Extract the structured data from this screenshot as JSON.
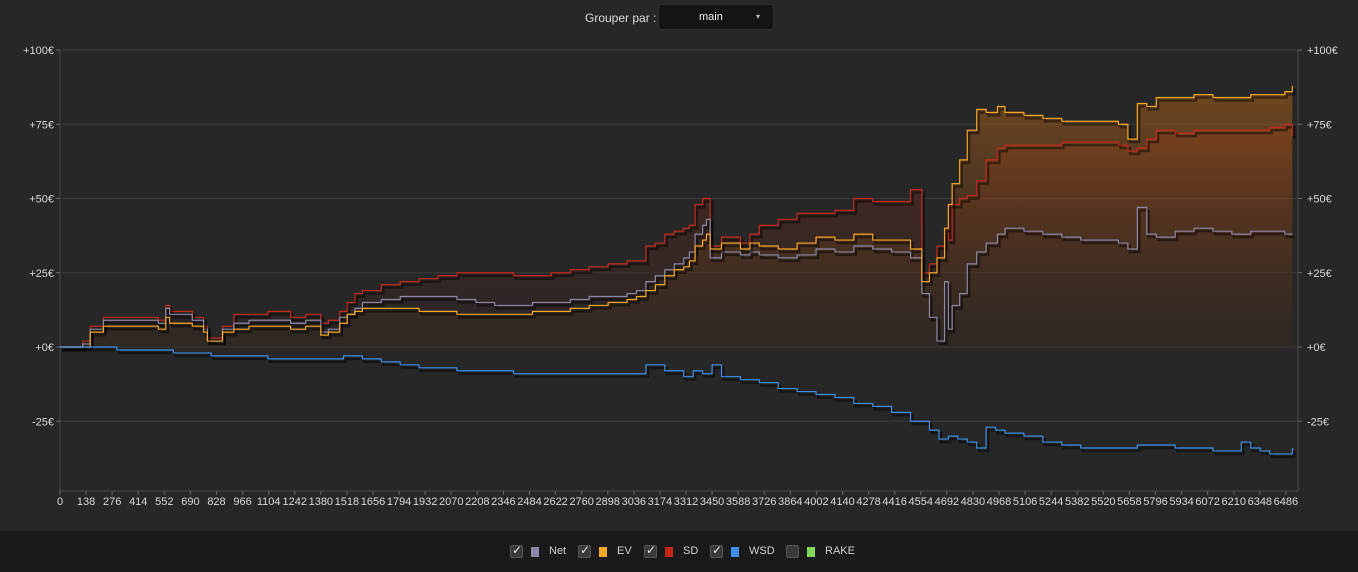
{
  "toolbar": {
    "group_label": "Grouper par :",
    "group_value": "main",
    "caret": "▾"
  },
  "colors": {
    "background": "#272727",
    "grid": "#3a3a3a",
    "net": "#8b88a8",
    "ev": "#f5a623",
    "sd": "#c4281c",
    "wsd": "#3d8ee8",
    "rake": "#7ed957"
  },
  "legend": [
    {
      "label": "Net",
      "series": "net",
      "checked": true,
      "check_glyph": "✓",
      "icon": "checkbox"
    },
    {
      "label": "EV",
      "series": "ev",
      "checked": true,
      "check_glyph": "✓",
      "icon": "checkbox"
    },
    {
      "label": "SD",
      "series": "sd",
      "checked": true,
      "check_glyph": "✓",
      "icon": "checkbox"
    },
    {
      "label": "WSD",
      "series": "wsd",
      "checked": true,
      "check_glyph": "✓",
      "icon": "checkbox"
    },
    {
      "label": "RAKE",
      "series": "rake",
      "checked": false,
      "check_glyph": "",
      "icon": "checkbox"
    }
  ],
  "chart_data": {
    "type": "line",
    "title": "",
    "xlabel": "",
    "ylabel": "",
    "xlim": [
      0,
      6550
    ],
    "ylim": [
      -48,
      102
    ],
    "grid": true,
    "fill": "area-under-ev-and-sd",
    "y_ticks": [
      {
        "value": 100,
        "label": "+100€"
      },
      {
        "value": 75,
        "label": "+75€"
      },
      {
        "value": 50,
        "label": "+50€"
      },
      {
        "value": 25,
        "label": "+25€"
      },
      {
        "value": 0,
        "label": "+0€"
      },
      {
        "value": -25,
        "label": "-25€"
      }
    ],
    "x_ticks": [
      0,
      138,
      276,
      414,
      552,
      690,
      828,
      966,
      1104,
      1242,
      1380,
      1518,
      1656,
      1794,
      1932,
      2070,
      2208,
      2346,
      2484,
      2622,
      2760,
      2898,
      3036,
      3174,
      3312,
      3450,
      3588,
      3726,
      3864,
      4002,
      4140,
      4278,
      4416,
      4554,
      4692,
      4830,
      4968,
      5106,
      5244,
      5382,
      5520,
      5658,
      5796,
      5934,
      6072,
      6210,
      6348,
      6486
    ],
    "series": [
      {
        "name": "SD",
        "key": "sd",
        "x": [
          0,
          120,
          160,
          230,
          270,
          520,
          560,
          580,
          700,
          760,
          780,
          860,
          920,
          1000,
          1100,
          1220,
          1300,
          1380,
          1420,
          1480,
          1520,
          1560,
          1600,
          1700,
          1800,
          1900,
          2000,
          2100,
          2200,
          2300,
          2400,
          2500,
          2600,
          2700,
          2800,
          2900,
          3000,
          3050,
          3100,
          3150,
          3200,
          3250,
          3300,
          3330,
          3360,
          3400,
          3420,
          3440,
          3500,
          3600,
          3650,
          3700,
          3800,
          3900,
          4000,
          4100,
          4200,
          4300,
          4400,
          4500,
          4560,
          4600,
          4640,
          4680,
          4700,
          4720,
          4760,
          4800,
          4850,
          4900,
          4960,
          5000,
          5100,
          5200,
          5300,
          5400,
          5500,
          5600,
          5650,
          5700,
          5750,
          5800,
          5900,
          6000,
          6100,
          6200,
          6300,
          6400,
          6480,
          6520
        ],
        "y": [
          0,
          2,
          7,
          10,
          10,
          9,
          14,
          12,
          10,
          7,
          3,
          7,
          11,
          11,
          12,
          10,
          11,
          8,
          9,
          12,
          15,
          18,
          19,
          21,
          22,
          23,
          24,
          25,
          25,
          25,
          24,
          24,
          25,
          26,
          27,
          28,
          29,
          29,
          34,
          35,
          38,
          39,
          40,
          41,
          48,
          50,
          50,
          34,
          37,
          35,
          38,
          41,
          43,
          45,
          45,
          46,
          50,
          49,
          49,
          53,
          25,
          28,
          34,
          40,
          36,
          48,
          50,
          51,
          56,
          63,
          67,
          68,
          68,
          68,
          69,
          69,
          69,
          68,
          66,
          67,
          70,
          73,
          72,
          73,
          73,
          73,
          73,
          74,
          75,
          71
        ]
      },
      {
        "name": "Net",
        "key": "net",
        "x": [
          0,
          120,
          160,
          230,
          270,
          520,
          560,
          580,
          700,
          760,
          780,
          860,
          920,
          1000,
          1100,
          1220,
          1300,
          1380,
          1420,
          1480,
          1520,
          1560,
          1600,
          1700,
          1800,
          1900,
          2000,
          2100,
          2200,
          2300,
          2400,
          2500,
          2600,
          2700,
          2800,
          2900,
          3000,
          3050,
          3100,
          3150,
          3200,
          3250,
          3300,
          3330,
          3360,
          3400,
          3420,
          3440,
          3500,
          3600,
          3650,
          3700,
          3800,
          3900,
          4000,
          4100,
          4200,
          4300,
          4400,
          4500,
          4560,
          4600,
          4640,
          4680,
          4700,
          4720,
          4760,
          4800,
          4850,
          4900,
          4960,
          5000,
          5100,
          5200,
          5300,
          5400,
          5500,
          5600,
          5650,
          5700,
          5750,
          5800,
          5900,
          6000,
          6100,
          6200,
          6300,
          6400,
          6480,
          6520
        ],
        "y": [
          0,
          1,
          6,
          9,
          9,
          8,
          13,
          11,
          9,
          6,
          2,
          6,
          8,
          9,
          9,
          8,
          9,
          5,
          6,
          10,
          11,
          13,
          15,
          16,
          17,
          17,
          17,
          16,
          15,
          14,
          14,
          15,
          15,
          16,
          17,
          17,
          18,
          19,
          22,
          24,
          26,
          28,
          30,
          32,
          38,
          41,
          43,
          30,
          32,
          31,
          32,
          31,
          30,
          31,
          33,
          32,
          34,
          33,
          32,
          30,
          18,
          10,
          2,
          22,
          6,
          14,
          18,
          28,
          32,
          35,
          38,
          40,
          39,
          38,
          37,
          36,
          36,
          35,
          33,
          47,
          38,
          37,
          39,
          40,
          39,
          38,
          39,
          39,
          38,
          38
        ]
      },
      {
        "name": "EV",
        "key": "ev",
        "x": [
          0,
          120,
          160,
          230,
          270,
          520,
          560,
          580,
          700,
          760,
          780,
          860,
          920,
          1000,
          1100,
          1220,
          1300,
          1380,
          1420,
          1480,
          1520,
          1560,
          1600,
          1700,
          1800,
          1900,
          2000,
          2100,
          2200,
          2300,
          2400,
          2500,
          2600,
          2700,
          2800,
          2900,
          3000,
          3050,
          3100,
          3150,
          3200,
          3250,
          3300,
          3330,
          3360,
          3400,
          3420,
          3440,
          3500,
          3600,
          3650,
          3700,
          3800,
          3900,
          4000,
          4100,
          4200,
          4300,
          4400,
          4500,
          4560,
          4600,
          4640,
          4680,
          4700,
          4720,
          4760,
          4800,
          4850,
          4900,
          4960,
          5000,
          5100,
          5200,
          5300,
          5400,
          5500,
          5600,
          5650,
          5700,
          5750,
          5800,
          5900,
          6000,
          6100,
          6200,
          6300,
          6400,
          6480,
          6520
        ],
        "y": [
          0,
          0,
          5,
          7,
          7,
          6,
          10,
          8,
          7,
          5,
          2,
          5,
          6,
          7,
          7,
          6,
          7,
          4,
          5,
          8,
          11,
          12,
          13,
          13,
          13,
          12,
          12,
          11,
          11,
          11,
          11,
          12,
          12,
          13,
          14,
          15,
          16,
          17,
          19,
          21,
          24,
          26,
          27,
          29,
          34,
          36,
          38,
          33,
          35,
          33,
          35,
          34,
          33,
          35,
          37,
          36,
          38,
          36,
          36,
          33,
          22,
          25,
          30,
          40,
          48,
          55,
          63,
          73,
          80,
          79,
          81,
          79,
          78,
          77,
          76,
          76,
          76,
          75,
          70,
          82,
          81,
          84,
          84,
          85,
          84,
          84,
          85,
          85,
          86,
          88
        ]
      },
      {
        "name": "WSD",
        "key": "wsd",
        "x": [
          0,
          100,
          200,
          300,
          400,
          500,
          600,
          700,
          800,
          900,
          1000,
          1100,
          1200,
          1300,
          1400,
          1500,
          1600,
          1700,
          1800,
          1900,
          2000,
          2100,
          2200,
          2300,
          2400,
          2500,
          2600,
          2700,
          2800,
          2900,
          3000,
          3100,
          3200,
          3300,
          3350,
          3400,
          3450,
          3500,
          3550,
          3600,
          3700,
          3800,
          3900,
          4000,
          4100,
          4200,
          4300,
          4400,
          4500,
          4600,
          4650,
          4700,
          4750,
          4800,
          4850,
          4900,
          4950,
          5000,
          5100,
          5200,
          5300,
          5400,
          5500,
          5600,
          5700,
          5800,
          5900,
          6000,
          6100,
          6200,
          6250,
          6300,
          6350,
          6400,
          6450,
          6500,
          6520
        ],
        "y": [
          0,
          0,
          0,
          -1,
          -1,
          -1,
          -2,
          -2,
          -3,
          -3,
          -3,
          -4,
          -4,
          -4,
          -4,
          -3,
          -4,
          -5,
          -6,
          -7,
          -7,
          -8,
          -8,
          -8,
          -9,
          -9,
          -9,
          -9,
          -9,
          -9,
          -9,
          -6,
          -8,
          -10,
          -8,
          -9,
          -6,
          -10,
          -10,
          -11,
          -12,
          -14,
          -15,
          -16,
          -17,
          -19,
          -20,
          -22,
          -25,
          -28,
          -31,
          -30,
          -31,
          -32,
          -34,
          -27,
          -28,
          -29,
          -30,
          -32,
          -33,
          -34,
          -34,
          -34,
          -33,
          -33,
          -34,
          -34,
          -35,
          -35,
          -32,
          -34,
          -35,
          -36,
          -36,
          -36,
          -34
        ]
      }
    ]
  }
}
